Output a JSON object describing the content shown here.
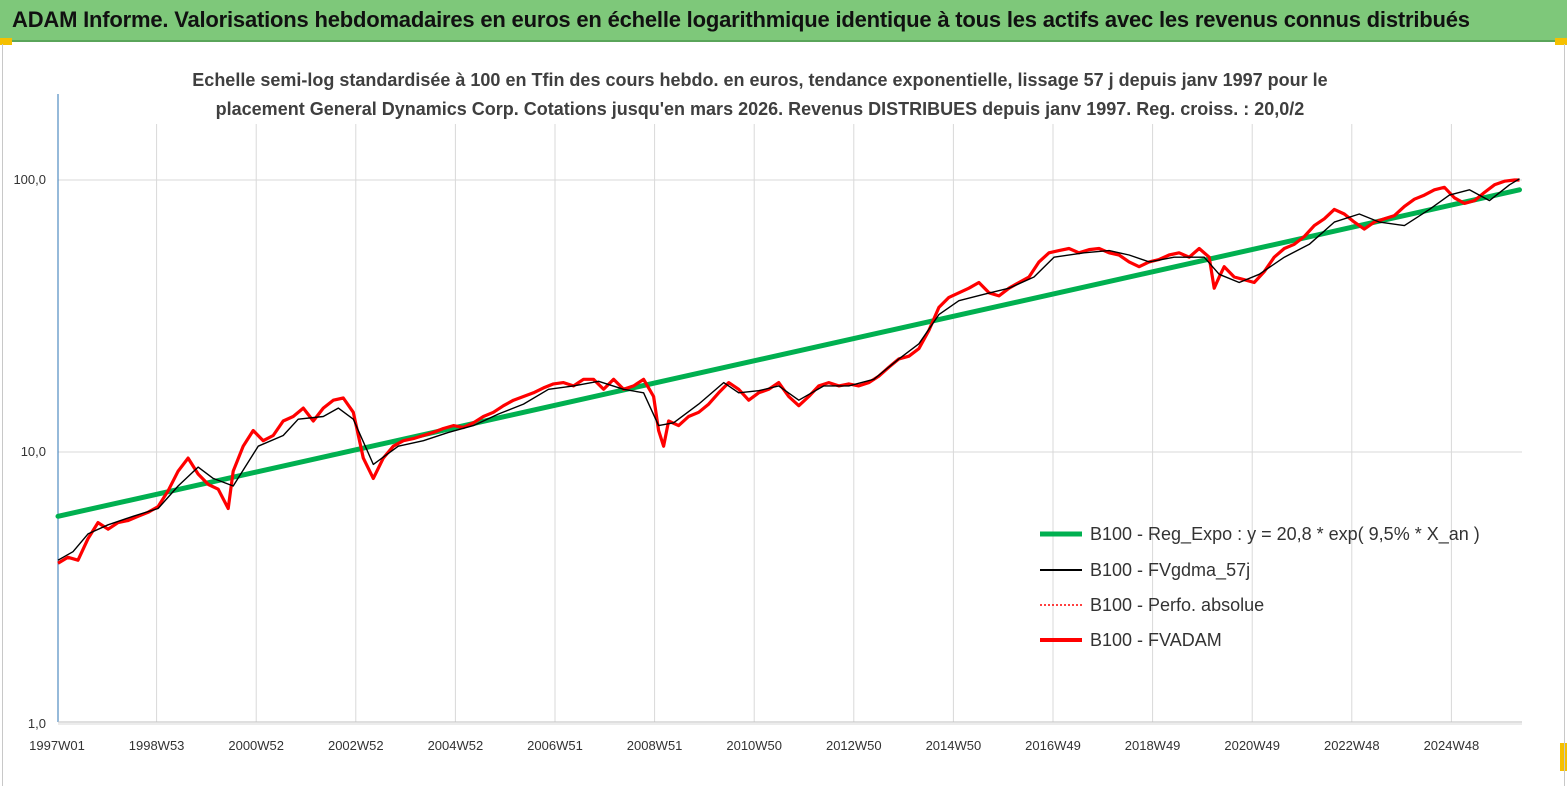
{
  "banner": {
    "title": "ADAM Informe. Valorisations hebdomadaires en euros en échelle logarithmique identique à tous les actifs avec les revenus connus distribués"
  },
  "colors": {
    "banner": "#7ec87a",
    "corner_marks": "#f5c000",
    "reg_expo": "#00b050",
    "fvgdma": "#000000",
    "perfo": "#ff0000",
    "fvadam": "#ff0000"
  },
  "chart_data": {
    "type": "line",
    "title": "Echelle semi-log standardisée à 100 en Tfin des cours hebdo. en euros, tendance exponentielle, lissage 57 j depuis janv 1997 pour le placement General Dynamics Corp. Cotations jusqu'en mars 2026. Revenus DISTRIBUES depuis janv 1997. Reg. croiss. : 20,0/2",
    "y_scale": "log",
    "ylim": [
      1,
      180
    ],
    "y_ticks": [
      1,
      10,
      100
    ],
    "y_tick_labels": [
      "1,0",
      "10,0",
      "100,0"
    ],
    "x_tick_labels": [
      "1997W01",
      "1998W53",
      "2000W52",
      "2002W52",
      "2004W52",
      "2006W51",
      "2008W51",
      "2010W50",
      "2012W50",
      "2014W50",
      "2016W49",
      "2018W49",
      "2020W49",
      "2022W48",
      "2024W48"
    ],
    "xlim": [
      1997.0,
      2026.25
    ],
    "grid": "vertical",
    "legend_position": "bottom-right",
    "series": [
      {
        "name": "B100 - Reg_Expo : y = 20,8 * exp( 9,5% *  X_an )",
        "color": "#00b050",
        "x": [
          1997.0,
          2026.2
        ],
        "y": [
          5.8,
          92
        ]
      },
      {
        "name": "B100 - FVgdma_57j",
        "color": "#000000",
        "x": [
          1997.0,
          1997.3,
          1997.6,
          1998.0,
          1998.5,
          1999.0,
          1999.4,
          1999.8,
          2000.1,
          2000.5,
          2001.0,
          2001.5,
          2001.8,
          2002.3,
          2002.6,
          2002.9,
          2003.3,
          2003.8,
          2004.3,
          2004.8,
          2005.3,
          2005.8,
          2006.3,
          2006.8,
          2007.3,
          2007.8,
          2008.3,
          2008.7,
          2009.0,
          2009.3,
          2009.8,
          2010.3,
          2010.6,
          2011.0,
          2011.4,
          2011.8,
          2012.3,
          2012.8,
          2013.3,
          2013.8,
          2014.2,
          2014.6,
          2015.0,
          2015.5,
          2016.0,
          2016.5,
          2016.9,
          2017.5,
          2018.0,
          2018.4,
          2018.8,
          2019.3,
          2019.9,
          2020.2,
          2020.6,
          2021.0,
          2021.5,
          2022.0,
          2022.5,
          2023.0,
          2023.4,
          2023.9,
          2024.4,
          2024.8,
          2025.2,
          2025.6,
          2026.0,
          2026.2
        ],
        "y": [
          4.0,
          4.3,
          5.0,
          5.4,
          5.8,
          6.2,
          7.5,
          8.8,
          8.0,
          7.5,
          10.5,
          11.5,
          13.2,
          13.5,
          14.5,
          13.2,
          9.0,
          10.5,
          11.0,
          11.8,
          12.5,
          13.8,
          15.0,
          17.0,
          17.5,
          18.2,
          17.0,
          16.5,
          12.5,
          12.8,
          15.0,
          18.0,
          16.5,
          16.8,
          17.5,
          15.5,
          17.5,
          17.5,
          18.5,
          22.0,
          25.0,
          32.0,
          36.0,
          38.0,
          40.0,
          44.0,
          52.0,
          54.0,
          55.0,
          53.0,
          50.0,
          52.0,
          52.0,
          45.0,
          42.0,
          45.0,
          52.0,
          58.0,
          70.0,
          75.0,
          70.0,
          68.0,
          78.0,
          88.0,
          92.0,
          84.0,
          96.0,
          101.0
        ]
      },
      {
        "name": "B100 - Perfo. absolue",
        "color": "#ff0000",
        "dash": "dotted"
      },
      {
        "name": "B100 - FVADAM",
        "color": "#ff0000",
        "x": [
          1997.0,
          1997.2,
          1997.4,
          1997.6,
          1997.8,
          1998.0,
          1998.2,
          1998.4,
          1998.6,
          1998.8,
          1999.0,
          1999.2,
          1999.4,
          1999.6,
          1999.8,
          2000.0,
          2000.2,
          2000.4,
          2000.5,
          2000.7,
          2000.9,
          2001.1,
          2001.3,
          2001.5,
          2001.7,
          2001.9,
          2002.1,
          2002.3,
          2002.5,
          2002.7,
          2002.9,
          2003.1,
          2003.3,
          2003.5,
          2003.7,
          2003.9,
          2004.1,
          2004.3,
          2004.5,
          2004.7,
          2004.9,
          2005.1,
          2005.3,
          2005.5,
          2005.7,
          2005.9,
          2006.1,
          2006.3,
          2006.5,
          2006.7,
          2006.9,
          2007.1,
          2007.3,
          2007.5,
          2007.7,
          2007.9,
          2008.1,
          2008.3,
          2008.5,
          2008.7,
          2008.9,
          2009.0,
          2009.1,
          2009.2,
          2009.4,
          2009.6,
          2009.8,
          2010.0,
          2010.2,
          2010.4,
          2010.6,
          2010.8,
          2011.0,
          2011.2,
          2011.4,
          2011.6,
          2011.8,
          2012.0,
          2012.2,
          2012.4,
          2012.6,
          2012.8,
          2013.0,
          2013.2,
          2013.4,
          2013.6,
          2013.8,
          2014.0,
          2014.2,
          2014.4,
          2014.6,
          2014.8,
          2015.0,
          2015.2,
          2015.4,
          2015.6,
          2015.8,
          2016.0,
          2016.2,
          2016.4,
          2016.6,
          2016.8,
          2017.0,
          2017.2,
          2017.4,
          2017.6,
          2017.8,
          2018.0,
          2018.2,
          2018.4,
          2018.6,
          2018.8,
          2019.0,
          2019.2,
          2019.4,
          2019.6,
          2019.8,
          2020.0,
          2020.1,
          2020.2,
          2020.3,
          2020.5,
          2020.7,
          2020.9,
          2021.1,
          2021.3,
          2021.5,
          2021.7,
          2021.9,
          2022.1,
          2022.3,
          2022.5,
          2022.7,
          2022.9,
          2023.1,
          2023.3,
          2023.5,
          2023.7,
          2023.9,
          2024.1,
          2024.3,
          2024.5,
          2024.7,
          2024.9,
          2025.1,
          2025.3,
          2025.5,
          2025.7,
          2025.9,
          2026.1,
          2026.2
        ],
        "y": [
          3.9,
          4.1,
          4.0,
          4.8,
          5.5,
          5.2,
          5.5,
          5.6,
          5.8,
          6.0,
          6.3,
          7.2,
          8.5,
          9.5,
          8.3,
          7.6,
          7.3,
          6.2,
          8.5,
          10.5,
          12.0,
          11.0,
          11.5,
          13.0,
          13.5,
          14.5,
          13.0,
          14.5,
          15.5,
          15.8,
          14.0,
          9.5,
          8.0,
          9.5,
          10.5,
          11.0,
          11.2,
          11.5,
          11.8,
          12.2,
          12.5,
          12.3,
          12.8,
          13.5,
          14.0,
          14.8,
          15.5,
          16.0,
          16.5,
          17.2,
          17.8,
          18.0,
          17.5,
          18.5,
          18.5,
          17.0,
          18.5,
          17.0,
          17.5,
          18.5,
          16.0,
          12.0,
          10.5,
          13.0,
          12.5,
          13.5,
          14.0,
          15.0,
          16.5,
          18.0,
          17.0,
          15.5,
          16.5,
          17.0,
          18.0,
          16.0,
          14.8,
          16.0,
          17.5,
          18.0,
          17.5,
          17.8,
          17.5,
          18.0,
          19.0,
          20.5,
          22.0,
          22.5,
          24.0,
          28.0,
          34.0,
          37.0,
          38.5,
          40.0,
          42.0,
          38.5,
          37.5,
          40.0,
          42.0,
          44.0,
          50.0,
          54.0,
          55.0,
          56.0,
          54.0,
          55.5,
          56.0,
          54.0,
          53.0,
          50.0,
          48.0,
          50.0,
          51.0,
          53.0,
          54.0,
          52.0,
          56.0,
          52.0,
          40.0,
          44.0,
          48.0,
          44.0,
          43.0,
          42.0,
          46.0,
          52.0,
          56.0,
          58.0,
          62.0,
          68.0,
          72.0,
          78.0,
          75.0,
          70.0,
          66.0,
          70.0,
          72.0,
          74.0,
          80.0,
          85.0,
          88.0,
          92.0,
          94.0,
          86.0,
          82.0,
          84.0,
          90.0,
          96.0,
          99.0,
          100.0,
          100.0
        ]
      }
    ]
  }
}
